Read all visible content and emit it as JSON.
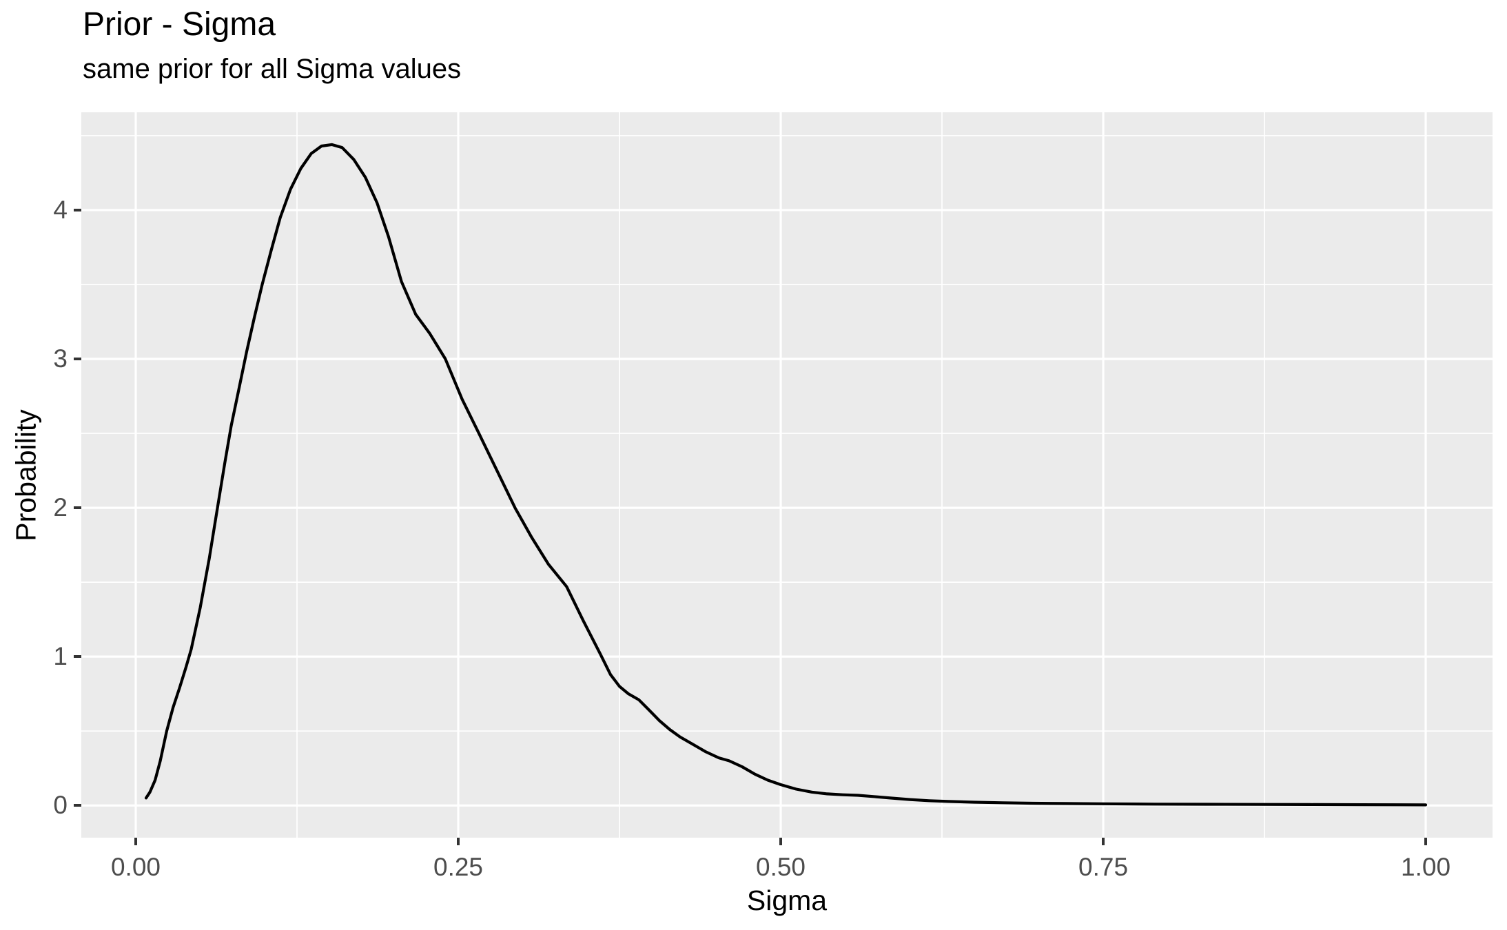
{
  "chart_data": {
    "type": "line",
    "title": "Prior - Sigma",
    "subtitle": "same prior for all Sigma values",
    "xlabel": "Sigma",
    "ylabel": "Probability",
    "xlim": [
      -0.0422,
      1.0518
    ],
    "ylim": [
      -0.2165,
      4.657
    ],
    "grid": "on",
    "legend": "none",
    "x_ticks": {
      "values": [
        0,
        0.25,
        0.5,
        0.75,
        1.0
      ],
      "labels": [
        "0.00",
        "0.25",
        "0.50",
        "0.75",
        "1.00"
      ]
    },
    "y_ticks": {
      "values": [
        0,
        1,
        2,
        3,
        4
      ],
      "labels": [
        "0",
        "1",
        "2",
        "3",
        "4"
      ]
    },
    "x_minor": [
      0.125,
      0.375,
      0.625,
      0.875
    ],
    "y_minor": [
      0.5,
      1.5,
      2.5,
      3.5,
      4.5
    ],
    "series": [
      {
        "name": "prior-density-curve",
        "color": "#000000",
        "points": [
          [
            0.008,
            0.05
          ],
          [
            0.011,
            0.09
          ],
          [
            0.015,
            0.17
          ],
          [
            0.019,
            0.3
          ],
          [
            0.024,
            0.5
          ],
          [
            0.029,
            0.66
          ],
          [
            0.034,
            0.79
          ],
          [
            0.039,
            0.93
          ],
          [
            0.043,
            1.05
          ],
          [
            0.05,
            1.33
          ],
          [
            0.057,
            1.66
          ],
          [
            0.063,
            1.98
          ],
          [
            0.069,
            2.3
          ],
          [
            0.074,
            2.55
          ],
          [
            0.08,
            2.8
          ],
          [
            0.086,
            3.05
          ],
          [
            0.092,
            3.28
          ],
          [
            0.098,
            3.5
          ],
          [
            0.105,
            3.73
          ],
          [
            0.112,
            3.95
          ],
          [
            0.12,
            4.14
          ],
          [
            0.128,
            4.28
          ],
          [
            0.136,
            4.38
          ],
          [
            0.144,
            4.43
          ],
          [
            0.152,
            4.44
          ],
          [
            0.16,
            4.42
          ],
          [
            0.169,
            4.34
          ],
          [
            0.178,
            4.22
          ],
          [
            0.187,
            4.05
          ],
          [
            0.196,
            3.82
          ],
          [
            0.206,
            3.52
          ],
          [
            0.217,
            3.3
          ],
          [
            0.228,
            3.17
          ],
          [
            0.24,
            3.0
          ],
          [
            0.253,
            2.73
          ],
          [
            0.266,
            2.5
          ],
          [
            0.28,
            2.25
          ],
          [
            0.294,
            2.0
          ],
          [
            0.307,
            1.8
          ],
          [
            0.32,
            1.62
          ],
          [
            0.334,
            1.47
          ],
          [
            0.347,
            1.24
          ],
          [
            0.36,
            1.02
          ],
          [
            0.368,
            0.88
          ],
          [
            0.375,
            0.8
          ],
          [
            0.382,
            0.75
          ],
          [
            0.39,
            0.71
          ],
          [
            0.398,
            0.64
          ],
          [
            0.406,
            0.57
          ],
          [
            0.414,
            0.51
          ],
          [
            0.422,
            0.46
          ],
          [
            0.432,
            0.41
          ],
          [
            0.442,
            0.36
          ],
          [
            0.452,
            0.32
          ],
          [
            0.46,
            0.3
          ],
          [
            0.47,
            0.26
          ],
          [
            0.48,
            0.21
          ],
          [
            0.49,
            0.17
          ],
          [
            0.5,
            0.14
          ],
          [
            0.512,
            0.11
          ],
          [
            0.524,
            0.09
          ],
          [
            0.536,
            0.078
          ],
          [
            0.548,
            0.072
          ],
          [
            0.56,
            0.068
          ],
          [
            0.572,
            0.06
          ],
          [
            0.585,
            0.05
          ],
          [
            0.6,
            0.04
          ],
          [
            0.615,
            0.032
          ],
          [
            0.63,
            0.027
          ],
          [
            0.65,
            0.022
          ],
          [
            0.672,
            0.018
          ],
          [
            0.695,
            0.015
          ],
          [
            0.72,
            0.013
          ],
          [
            0.75,
            0.011
          ],
          [
            0.79,
            0.009
          ],
          [
            0.83,
            0.008
          ],
          [
            0.87,
            0.007
          ],
          [
            0.91,
            0.006
          ],
          [
            0.95,
            0.005
          ],
          [
            1.0,
            0.004
          ]
        ]
      }
    ]
  },
  "style": {
    "plot_bg": "#FFFFFF",
    "panel_bg": "#EBEBEB",
    "grid_color": "#FFFFFF",
    "curve_color": "#000000",
    "tick_mark_color": "#333333",
    "tick_label_color": "#4D4D4D",
    "title_color": "#000000"
  }
}
